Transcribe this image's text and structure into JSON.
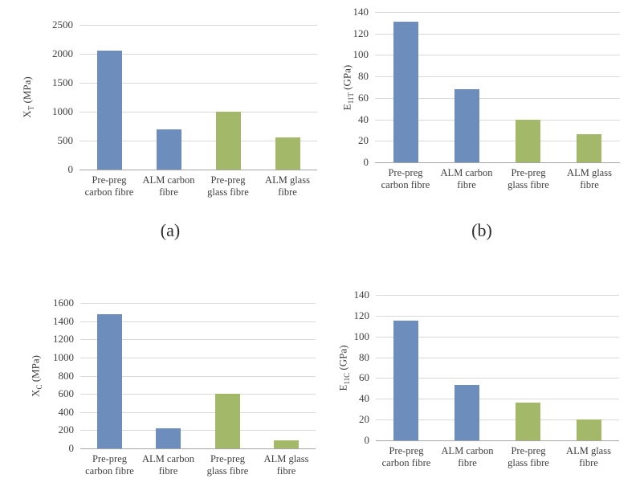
{
  "colors": {
    "carbon_fibre_bar": "#6d8dbd",
    "glass_fibre_bar": "#a3b969",
    "gridline": "#d9d9d9",
    "axis_line": "#a6a6a6",
    "text": "#3f3f3f"
  },
  "chart_data": [
    {
      "type": "bar",
      "caption": "(a)",
      "ylabel": {
        "base": "X",
        "sub": "T",
        "unit": "(MPa)"
      },
      "ylabel_text": "X_T (MPa)",
      "categories": [
        "Pre-preg carbon fibre",
        "ALM carbon fibre",
        "Pre-preg glass fibre",
        "ALM glass fibre"
      ],
      "category_lines": [
        [
          "Pre-preg",
          "carbon fibre"
        ],
        [
          "ALM carbon",
          "fibre"
        ],
        [
          "Pre-preg",
          "glass fibre"
        ],
        [
          "ALM glass",
          "fibre"
        ]
      ],
      "values": [
        2050,
        700,
        1000,
        560
      ],
      "yticks": [
        0,
        500,
        1000,
        1500,
        2000,
        2500
      ],
      "ylim": [
        0,
        2500
      ],
      "grid": true,
      "legend": "none",
      "bar_colors": [
        "#6d8dbd",
        "#6d8dbd",
        "#a3b969",
        "#a3b969"
      ]
    },
    {
      "type": "bar",
      "caption": "(b)",
      "ylabel": {
        "base": "E",
        "sub": "11T",
        "unit": "(GPa)"
      },
      "ylabel_text": "E_11T (GPa)",
      "categories": [
        "Pre-preg carbon fibre",
        "ALM carbon fibre",
        "Pre-preg glass fibre",
        "ALM glass fibre"
      ],
      "category_lines": [
        [
          "Pre-preg",
          "carbon fibre"
        ],
        [
          "ALM carbon",
          "fibre"
        ],
        [
          "Pre-preg",
          "glass fibre"
        ],
        [
          "ALM glass",
          "fibre"
        ]
      ],
      "values": [
        131,
        68,
        40,
        26
      ],
      "yticks": [
        0,
        20,
        40,
        60,
        80,
        100,
        120,
        140
      ],
      "ylim": [
        0,
        140
      ],
      "grid": true,
      "legend": "none",
      "bar_colors": [
        "#6d8dbd",
        "#6d8dbd",
        "#a3b969",
        "#a3b969"
      ]
    },
    {
      "type": "bar",
      "ylabel": {
        "base": "X",
        "sub": "C",
        "unit": "(MPa)"
      },
      "ylabel_text": "X_C (MPa)",
      "categories": [
        "Pre-preg carbon fibre",
        "ALM carbon fibre",
        "Pre-preg glass fibre",
        "ALM glass fibre"
      ],
      "category_lines": [
        [
          "Pre-preg",
          "carbon fibre"
        ],
        [
          "ALM carbon",
          "fibre"
        ],
        [
          "Pre-preg",
          "glass fibre"
        ],
        [
          "ALM glass",
          "fibre"
        ]
      ],
      "values": [
        1480,
        220,
        600,
        90
      ],
      "yticks": [
        0,
        200,
        400,
        600,
        800,
        1000,
        1200,
        1400,
        1600
      ],
      "ylim": [
        0,
        1600
      ],
      "grid": true,
      "legend": "none",
      "bar_colors": [
        "#6d8dbd",
        "#6d8dbd",
        "#a3b969",
        "#a3b969"
      ]
    },
    {
      "type": "bar",
      "ylabel": {
        "base": "E",
        "sub": "11C",
        "unit": "(GPa)"
      },
      "ylabel_text": "E_11C (GPa)",
      "categories": [
        "Pre-preg carbon fibre",
        "ALM carbon fibre",
        "Pre-preg glass fibre",
        "ALM glass fibre"
      ],
      "category_lines": [
        [
          "Pre-preg",
          "carbon fibre"
        ],
        [
          "ALM carbon",
          "fibre"
        ],
        [
          "Pre-preg",
          "glass fibre"
        ],
        [
          "ALM glass",
          "fibre"
        ]
      ],
      "values": [
        115,
        53,
        36,
        20
      ],
      "yticks": [
        0,
        20,
        40,
        60,
        80,
        100,
        120,
        140
      ],
      "ylim": [
        0,
        140
      ],
      "grid": true,
      "legend": "none",
      "bar_colors": [
        "#6d8dbd",
        "#6d8dbd",
        "#a3b969",
        "#a3b969"
      ]
    }
  ]
}
